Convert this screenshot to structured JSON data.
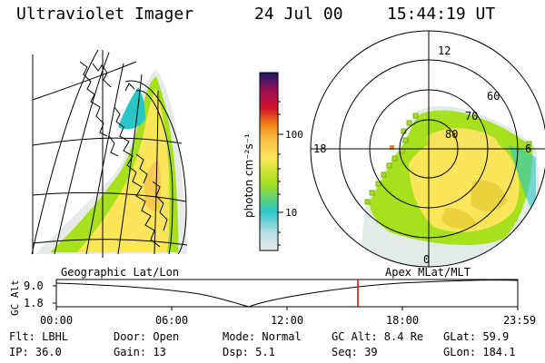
{
  "header": {
    "title": "Ultraviolet Imager",
    "date": "24 Jul 00",
    "time": "15:44:19 UT"
  },
  "colorbar": {
    "unit_label": "photon cm⁻²s⁻¹",
    "ticks": [
      "100",
      "10"
    ],
    "scale": "log",
    "colors": [
      "#e8e8e8",
      "#29c6c8",
      "#a7e01c",
      "#fbe55a",
      "#f5c04a",
      "#f08a17",
      "#d4142a",
      "#9a0f52",
      "#1a1a6a"
    ]
  },
  "geo_map": {
    "caption": "Geographic Lat/Lon"
  },
  "polar_plot": {
    "caption": "Apex MLat/MLT",
    "mlt_labels": [
      "12",
      "18",
      "6",
      "0"
    ],
    "lat_labels": [
      "60",
      "70",
      "80"
    ]
  },
  "altitude_plot": {
    "ylabel": "GC Alt",
    "yticks": [
      "9.0",
      "1.8"
    ],
    "xticks": [
      "00:00",
      "06:00",
      "12:00",
      "18:00",
      "23:59"
    ],
    "marker_time": "15:44"
  },
  "status": {
    "filter": "Flt: LBHL",
    "door": "Door: Open",
    "mode": "Mode: Normal",
    "gc_alt": "GC Alt: 8.4 Re",
    "glat": "GLat:  59.9",
    "ip": "IP: 36.0",
    "gain": "Gain: 13",
    "dsp": "Dsp:    5.1",
    "seq": "Seq: 39",
    "glon": "GLon: 184.1"
  }
}
